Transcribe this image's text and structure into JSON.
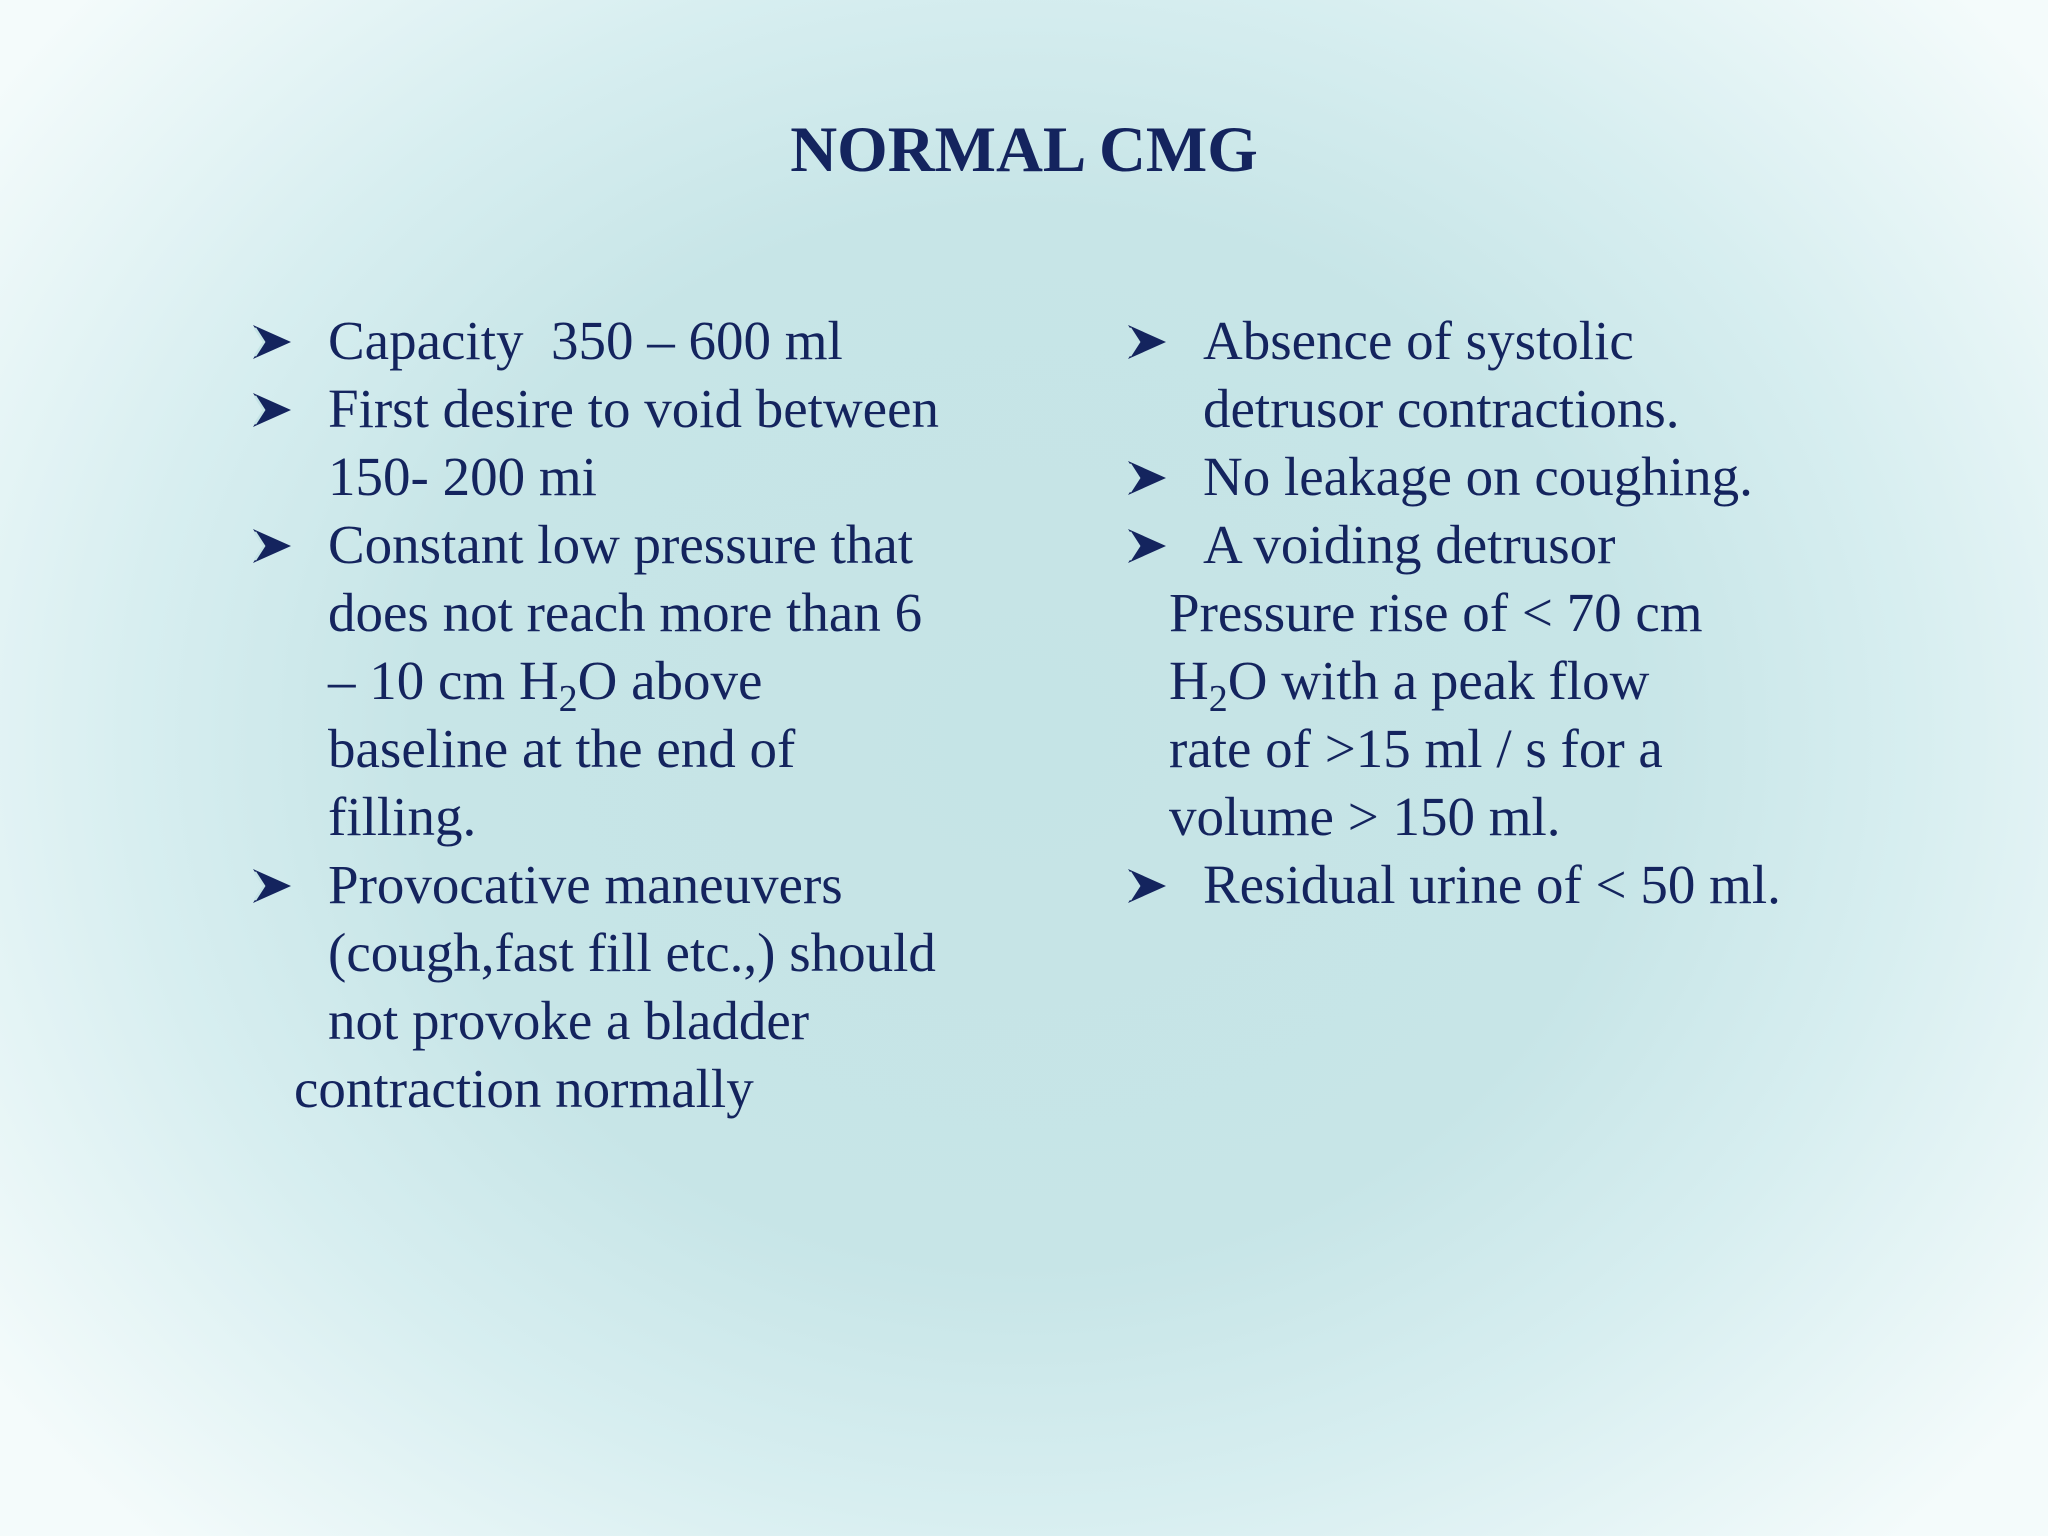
{
  "slide": {
    "title": "NORMAL CMG",
    "bullet_icon": "arrow-bullet-icon",
    "text_color": "#14245e",
    "left_column": {
      "capacity": "Capacity  350 – 600 ml",
      "first_desire_1": "First desire to void between",
      "first_desire_2": "150- 200 mi",
      "constant_1": "Constant low pressure that",
      "constant_2": "does not reach more than 6",
      "constant_3a": "– 10 cm H",
      "constant_3_sub": "2",
      "constant_3b": "O above",
      "constant_4": "baseline at the end of",
      "constant_5": "filling.",
      "provocative_1": "Provocative maneuvers",
      "provocative_2": "(cough,fast fill etc.,) should",
      "provocative_3": "not provoke a bladder",
      "provocative_4": "contraction normally"
    },
    "right_column": {
      "absence_1": "Absence of systolic",
      "absence_2": "detrusor contractions.",
      "leakage": "No leakage on coughing.",
      "voiding_1": "A voiding detrusor",
      "voiding_2": "Pressure rise of < 70 cm",
      "voiding_3a": "H",
      "voiding_3_sub": "2",
      "voiding_3b": "O with a peak flow",
      "voiding_4": "rate of >15 ml / s for a",
      "voiding_5": "volume > 150 ml.",
      "residual": "Residual urine of < 50 ml."
    }
  }
}
